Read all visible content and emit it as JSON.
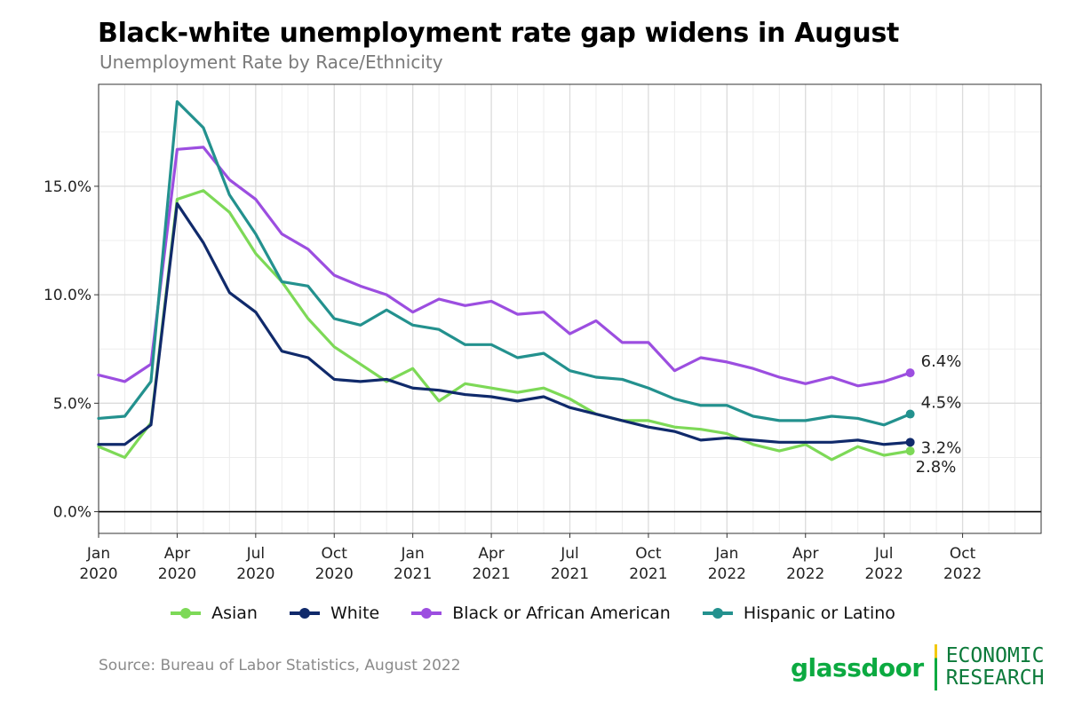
{
  "header": {
    "title": "Black-white unemployment rate gap widens in August",
    "subtitle": "Unemployment Rate by Race/Ethnicity"
  },
  "footer": {
    "source": "Source: Bureau of Labor Statistics, August 2022",
    "logo_word": "glassdoor",
    "logo_line1": "ECONOMIC",
    "logo_line2": "RESEARCH"
  },
  "chart_data": {
    "type": "line",
    "title": "Black-white unemployment rate gap widens in August",
    "subtitle": "Unemployment Rate by Race/Ethnicity",
    "xlabel": "",
    "ylabel": "",
    "ylim": [
      -1.0,
      19.7
    ],
    "yticks": [
      0,
      5,
      10,
      15
    ],
    "ytick_labels": [
      "0.0%",
      "5.0%",
      "10.0%",
      "15.0%"
    ],
    "xlim": [
      0,
      36
    ],
    "xticks": [
      {
        "month_index": 0,
        "line1": "Jan",
        "line2": "2020"
      },
      {
        "month_index": 3,
        "line1": "Apr",
        "line2": "2020"
      },
      {
        "month_index": 6,
        "line1": "Jul",
        "line2": "2020"
      },
      {
        "month_index": 9,
        "line1": "Oct",
        "line2": "2020"
      },
      {
        "month_index": 12,
        "line1": "Jan",
        "line2": "2021"
      },
      {
        "month_index": 15,
        "line1": "Apr",
        "line2": "2021"
      },
      {
        "month_index": 18,
        "line1": "Jul",
        "line2": "2021"
      },
      {
        "month_index": 21,
        "line1": "Oct",
        "line2": "2021"
      },
      {
        "month_index": 24,
        "line1": "Jan",
        "line2": "2022"
      },
      {
        "month_index": 27,
        "line1": "Apr",
        "line2": "2022"
      },
      {
        "month_index": 30,
        "line1": "Jul",
        "line2": "2022"
      },
      {
        "month_index": 33,
        "line1": "Oct",
        "line2": "2022"
      }
    ],
    "grid": true,
    "legend_position": "bottom",
    "x_month_index": [
      0,
      1,
      2,
      3,
      4,
      5,
      6,
      7,
      8,
      9,
      10,
      11,
      12,
      13,
      14,
      15,
      16,
      17,
      18,
      19,
      20,
      21,
      22,
      23,
      24,
      25,
      26,
      27,
      28,
      29,
      30,
      31
    ],
    "series": [
      {
        "name": "Asian",
        "color": "#7dd957",
        "values": [
          3.0,
          2.5,
          4.1,
          14.4,
          14.8,
          13.8,
          11.9,
          10.6,
          8.9,
          7.6,
          6.8,
          6.0,
          6.6,
          5.1,
          5.9,
          5.7,
          5.5,
          5.7,
          5.2,
          4.5,
          4.2,
          4.2,
          3.9,
          3.8,
          3.6,
          3.1,
          2.8,
          3.1,
          2.4,
          3.0,
          2.6,
          2.8
        ],
        "end_label": "2.8%"
      },
      {
        "name": "White",
        "color": "#102a6b",
        "values": [
          3.1,
          3.1,
          4.0,
          14.2,
          12.4,
          10.1,
          9.2,
          7.4,
          7.1,
          6.1,
          6.0,
          6.1,
          5.7,
          5.6,
          5.4,
          5.3,
          5.1,
          5.3,
          4.8,
          4.5,
          4.2,
          3.9,
          3.7,
          3.3,
          3.4,
          3.3,
          3.2,
          3.2,
          3.2,
          3.3,
          3.1,
          3.2
        ],
        "end_label": "3.2%"
      },
      {
        "name": "Black or African American",
        "color": "#9c4ee0",
        "values": [
          6.3,
          6.0,
          6.8,
          16.7,
          16.8,
          15.3,
          14.4,
          12.8,
          12.1,
          10.9,
          10.4,
          10.0,
          9.2,
          9.8,
          9.5,
          9.7,
          9.1,
          9.2,
          8.2,
          8.8,
          7.8,
          7.8,
          6.5,
          7.1,
          6.9,
          6.6,
          6.2,
          5.9,
          6.2,
          5.8,
          6.0,
          6.4
        ],
        "end_label": "6.4%"
      },
      {
        "name": "Hispanic or Latino",
        "color": "#23918e",
        "values": [
          4.3,
          4.4,
          6.0,
          18.9,
          17.7,
          14.6,
          12.8,
          10.6,
          10.4,
          8.9,
          8.6,
          9.3,
          8.6,
          8.4,
          7.7,
          7.7,
          7.1,
          7.3,
          6.5,
          6.2,
          6.1,
          5.7,
          5.2,
          4.9,
          4.9,
          4.4,
          4.2,
          4.2,
          4.4,
          4.3,
          4.0,
          4.5
        ],
        "end_label": "4.5%"
      }
    ]
  }
}
